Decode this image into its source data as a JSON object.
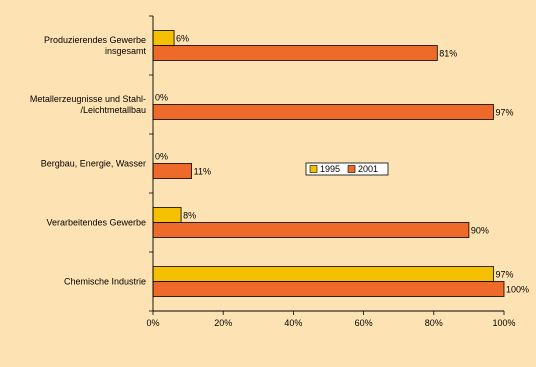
{
  "chart_data": {
    "type": "bar",
    "orientation": "horizontal",
    "categories": [
      "Produzierendes Gewerbe insgesamt",
      "Metallerzeugnisse und Stahl-/Leichtmetallbau",
      "Bergbau, Energie, Wasser",
      "Verarbeitendes Gewerbe",
      "Chemische Industrie"
    ],
    "category_lines": [
      [
        "Produzierendes Gewerbe",
        "insgesamt"
      ],
      [
        "Metallerzeugnisse und Stahl-",
        "/Leichtmetallbau"
      ],
      [
        "Bergbau, Energie, Wasser"
      ],
      [
        "Verarbeitendes Gewerbe"
      ],
      [
        "Chemische Industrie"
      ]
    ],
    "series": [
      {
        "name": "1995",
        "values": [
          6,
          0,
          0,
          8,
          97
        ],
        "labels": [
          "6%",
          "0%",
          "0%",
          "8%",
          "97%"
        ],
        "color": "#f5c000"
      },
      {
        "name": "2001",
        "values": [
          81,
          97,
          11,
          90,
          100
        ],
        "labels": [
          "81%",
          "97%",
          "11%",
          "90%",
          "100%"
        ],
        "color": "#ee6a2a"
      }
    ],
    "x_ticks": [
      "0%",
      "20%",
      "40%",
      "60%",
      "80%",
      "100%"
    ],
    "xlim": [
      0,
      100
    ],
    "title": "",
    "xlabel": "",
    "ylabel": "",
    "grid": false,
    "legend": "center"
  }
}
